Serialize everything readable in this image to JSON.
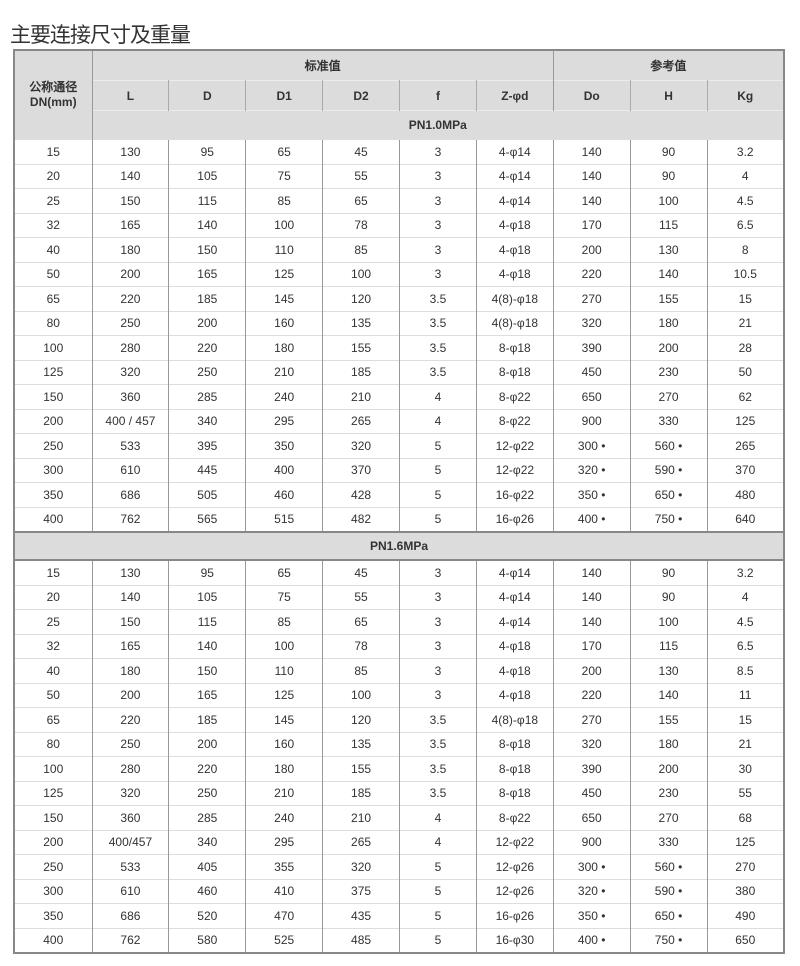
{
  "title": "主要连接尺寸及重量",
  "header": {
    "dn_label": "公称通径",
    "dn_unit": "DN(mm)",
    "group_standard": "标准值",
    "group_reference": "参考值",
    "columns": [
      "L",
      "D",
      "D1",
      "D2",
      "f",
      "Z-φd",
      "Do",
      "H",
      "Kg"
    ]
  },
  "sections": [
    {
      "label": "PN1.0MPa",
      "rows": [
        [
          "15",
          "130",
          "95",
          "65",
          "45",
          "3",
          "4-φ14",
          "140",
          "90",
          "3.2"
        ],
        [
          "20",
          "140",
          "105",
          "75",
          "55",
          "3",
          "4-φ14",
          "140",
          "90",
          "4"
        ],
        [
          "25",
          "150",
          "115",
          "85",
          "65",
          "3",
          "4-φ14",
          "140",
          "100",
          "4.5"
        ],
        [
          "32",
          "165",
          "140",
          "100",
          "78",
          "3",
          "4-φ18",
          "170",
          "115",
          "6.5"
        ],
        [
          "40",
          "180",
          "150",
          "110",
          "85",
          "3",
          "4-φ18",
          "200",
          "130",
          "8"
        ],
        [
          "50",
          "200",
          "165",
          "125",
          "100",
          "3",
          "4-φ18",
          "220",
          "140",
          "10.5"
        ],
        [
          "65",
          "220",
          "185",
          "145",
          "120",
          "3.5",
          "4(8)-φ18",
          "270",
          "155",
          "15"
        ],
        [
          "80",
          "250",
          "200",
          "160",
          "135",
          "3.5",
          "4(8)-φ18",
          "320",
          "180",
          "21"
        ],
        [
          "100",
          "280",
          "220",
          "180",
          "155",
          "3.5",
          "8-φ18",
          "390",
          "200",
          "28"
        ],
        [
          "125",
          "320",
          "250",
          "210",
          "185",
          "3.5",
          "8-φ18",
          "450",
          "230",
          "50"
        ],
        [
          "150",
          "360",
          "285",
          "240",
          "210",
          "4",
          "8-φ22",
          "650",
          "270",
          "62"
        ],
        [
          "200",
          "400 / 457",
          "340",
          "295",
          "265",
          "4",
          "8-φ22",
          "900",
          "330",
          "125"
        ],
        [
          "250",
          "533",
          "395",
          "350",
          "320",
          "5",
          "12-φ22",
          "300 •",
          "560 •",
          "265"
        ],
        [
          "300",
          "610",
          "445",
          "400",
          "370",
          "5",
          "12-φ22",
          "320 •",
          "590 •",
          "370"
        ],
        [
          "350",
          "686",
          "505",
          "460",
          "428",
          "5",
          "16-φ22",
          "350 •",
          "650 •",
          "480"
        ],
        [
          "400",
          "762",
          "565",
          "515",
          "482",
          "5",
          "16-φ26",
          "400 •",
          "750 •",
          "640"
        ]
      ]
    },
    {
      "label": "PN1.6MPa",
      "rows": [
        [
          "15",
          "130",
          "95",
          "65",
          "45",
          "3",
          "4-φ14",
          "140",
          "90",
          "3.2"
        ],
        [
          "20",
          "140",
          "105",
          "75",
          "55",
          "3",
          "4-φ14",
          "140",
          "90",
          "4"
        ],
        [
          "25",
          "150",
          "115",
          "85",
          "65",
          "3",
          "4-φ14",
          "140",
          "100",
          "4.5"
        ],
        [
          "32",
          "165",
          "140",
          "100",
          "78",
          "3",
          "4-φ18",
          "170",
          "115",
          "6.5"
        ],
        [
          "40",
          "180",
          "150",
          "110",
          "85",
          "3",
          "4-φ18",
          "200",
          "130",
          "8.5"
        ],
        [
          "50",
          "200",
          "165",
          "125",
          "100",
          "3",
          "4-φ18",
          "220",
          "140",
          "11"
        ],
        [
          "65",
          "220",
          "185",
          "145",
          "120",
          "3.5",
          "4(8)-φ18",
          "270",
          "155",
          "15"
        ],
        [
          "80",
          "250",
          "200",
          "160",
          "135",
          "3.5",
          "8-φ18",
          "320",
          "180",
          "21"
        ],
        [
          "100",
          "280",
          "220",
          "180",
          "155",
          "3.5",
          "8-φ18",
          "390",
          "200",
          "30"
        ],
        [
          "125",
          "320",
          "250",
          "210",
          "185",
          "3.5",
          "8-φ18",
          "450",
          "230",
          "55"
        ],
        [
          "150",
          "360",
          "285",
          "240",
          "210",
          "4",
          "8-φ22",
          "650",
          "270",
          "68"
        ],
        [
          "200",
          "400/457",
          "340",
          "295",
          "265",
          "4",
          "12-φ22",
          "900",
          "330",
          "125"
        ],
        [
          "250",
          "533",
          "405",
          "355",
          "320",
          "5",
          "12-φ26",
          "300 •",
          "560 •",
          "270"
        ],
        [
          "300",
          "610",
          "460",
          "410",
          "375",
          "5",
          "12-φ26",
          "320 •",
          "590 •",
          "380"
        ],
        [
          "350",
          "686",
          "520",
          "470",
          "435",
          "5",
          "16-φ26",
          "350 •",
          "650 •",
          "490"
        ],
        [
          "400",
          "762",
          "580",
          "525",
          "485",
          "5",
          "16-φ30",
          "400 •",
          "750 •",
          "650"
        ]
      ]
    }
  ]
}
